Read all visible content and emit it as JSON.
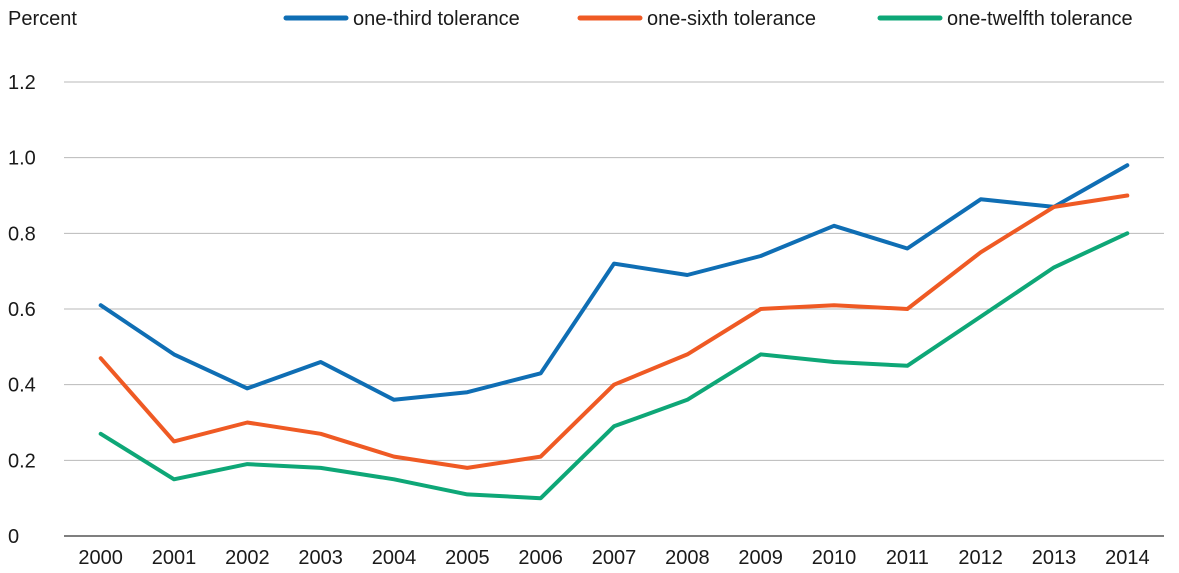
{
  "chart_data": {
    "type": "line",
    "ylabel": "Percent",
    "ylim": [
      0,
      1.2
    ],
    "yticks": [
      "0",
      "0.2",
      "0.4",
      "0.6",
      "0.8",
      "1.0",
      "1.2"
    ],
    "categories": [
      "2000",
      "2001",
      "2002",
      "2003",
      "2004",
      "2005",
      "2006",
      "2007",
      "2008",
      "2009",
      "2010",
      "2011",
      "2012",
      "2013",
      "2014"
    ],
    "grid": true,
    "legend_position": "top",
    "series": [
      {
        "name": "one-third tolerance",
        "color": "#0f6eb4",
        "values": [
          0.61,
          0.48,
          0.39,
          0.46,
          0.36,
          0.38,
          0.43,
          0.72,
          0.69,
          0.74,
          0.82,
          0.76,
          0.89,
          0.87,
          0.98
        ]
      },
      {
        "name": "one-sixth tolerance",
        "color": "#ef5a24",
        "values": [
          0.47,
          0.25,
          0.3,
          0.27,
          0.21,
          0.18,
          0.21,
          0.4,
          0.48,
          0.6,
          0.61,
          0.6,
          0.75,
          0.87,
          0.9
        ]
      },
      {
        "name": "one-twelfth tolerance",
        "color": "#0ea777",
        "values": [
          0.27,
          0.15,
          0.19,
          0.18,
          0.15,
          0.11,
          0.1,
          0.29,
          0.36,
          0.48,
          0.46,
          0.45,
          0.58,
          0.71,
          0.8
        ]
      }
    ]
  }
}
